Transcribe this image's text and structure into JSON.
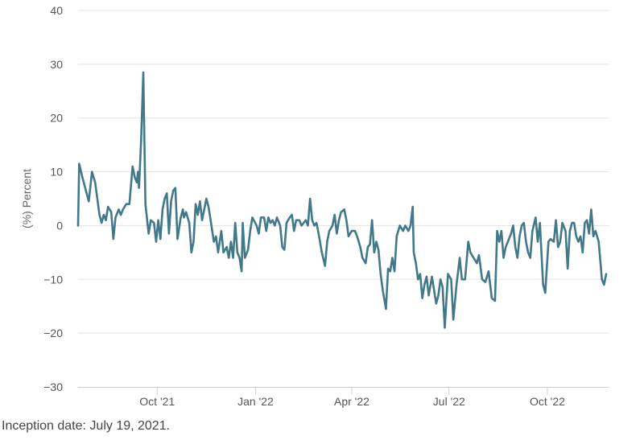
{
  "chart_data": {
    "type": "line",
    "title": "",
    "xlabel": "",
    "ylabel": "(%) Percent",
    "ylim": [
      -30,
      40
    ],
    "yticks": [
      -30,
      -20,
      -10,
      0,
      10,
      20,
      30,
      40
    ],
    "xlim": [
      "2021-07-19",
      "2022-11-28"
    ],
    "xticks": [
      {
        "date": "2021-10-01",
        "label": "Oct '21"
      },
      {
        "date": "2022-01-01",
        "label": "Jan '22"
      },
      {
        "date": "2022-04-01",
        "label": "Apr '22"
      },
      {
        "date": "2022-07-01",
        "label": "Jul '22"
      },
      {
        "date": "2022-10-01",
        "label": "Oct '22"
      }
    ],
    "grid": true,
    "legend": "none",
    "line_color": "#41788a",
    "series": [
      {
        "points": [
          [
            "2021-07-19",
            0
          ],
          [
            "2021-07-20",
            11.5
          ],
          [
            "2021-07-23",
            9
          ],
          [
            "2021-07-27",
            6
          ],
          [
            "2021-07-29",
            4.5
          ],
          [
            "2021-08-01",
            10
          ],
          [
            "2021-08-04",
            8
          ],
          [
            "2021-08-06",
            5
          ],
          [
            "2021-08-08",
            2
          ],
          [
            "2021-08-10",
            0.5
          ],
          [
            "2021-08-12",
            2
          ],
          [
            "2021-08-14",
            1
          ],
          [
            "2021-08-16",
            3.5
          ],
          [
            "2021-08-19",
            2.5
          ],
          [
            "2021-08-21",
            -2.5
          ],
          [
            "2021-08-23",
            1.5
          ],
          [
            "2021-08-26",
            3
          ],
          [
            "2021-08-28",
            2
          ],
          [
            "2021-08-30",
            3
          ],
          [
            "2021-09-02",
            4
          ],
          [
            "2021-09-05",
            4
          ],
          [
            "2021-09-08",
            11
          ],
          [
            "2021-09-10",
            9
          ],
          [
            "2021-09-12",
            8
          ],
          [
            "2021-09-13",
            10
          ],
          [
            "2021-09-14",
            7
          ],
          [
            "2021-09-16",
            16
          ],
          [
            "2021-09-18",
            28.5
          ],
          [
            "2021-09-20",
            4
          ],
          [
            "2021-09-23",
            -1.5
          ],
          [
            "2021-09-25",
            1
          ],
          [
            "2021-09-28",
            0.5
          ],
          [
            "2021-09-30",
            -3
          ],
          [
            "2021-10-02",
            1
          ],
          [
            "2021-10-04",
            -2.5
          ],
          [
            "2021-10-06",
            3
          ],
          [
            "2021-10-08",
            5
          ],
          [
            "2021-10-10",
            6
          ],
          [
            "2021-10-12",
            -1.5
          ],
          [
            "2021-10-14",
            4.5
          ],
          [
            "2021-10-16",
            6.5
          ],
          [
            "2021-10-18",
            7
          ],
          [
            "2021-10-20",
            -2.5
          ],
          [
            "2021-10-23",
            1.5
          ],
          [
            "2021-10-25",
            3
          ],
          [
            "2021-10-26",
            1.5
          ],
          [
            "2021-10-28",
            2.5
          ],
          [
            "2021-10-31",
            0.5
          ],
          [
            "2021-11-02",
            -5
          ],
          [
            "2021-11-04",
            -3
          ],
          [
            "2021-11-06",
            4
          ],
          [
            "2021-11-08",
            2
          ],
          [
            "2021-11-10",
            4.5
          ],
          [
            "2021-11-12",
            1
          ],
          [
            "2021-11-14",
            3
          ],
          [
            "2021-11-16",
            5
          ],
          [
            "2021-11-18",
            3.5
          ],
          [
            "2021-11-20",
            1
          ],
          [
            "2021-11-23",
            -3
          ],
          [
            "2021-11-25",
            -2
          ],
          [
            "2021-11-27",
            -5
          ],
          [
            "2021-11-30",
            -1
          ],
          [
            "2021-12-02",
            -5
          ],
          [
            "2021-12-05",
            -4
          ],
          [
            "2021-12-07",
            -6
          ],
          [
            "2021-12-09",
            -3
          ],
          [
            "2021-12-11",
            -6
          ],
          [
            "2021-12-13",
            0.5
          ],
          [
            "2021-12-15",
            -5
          ],
          [
            "2021-12-17",
            -6
          ],
          [
            "2021-12-19",
            -8.5
          ],
          [
            "2021-12-20",
            0.5
          ],
          [
            "2021-12-22",
            -6
          ],
          [
            "2021-12-25",
            -4.5
          ],
          [
            "2021-12-27",
            -1
          ],
          [
            "2021-12-29",
            1.5
          ],
          [
            "2022-01-02",
            0
          ],
          [
            "2022-01-04",
            -1.5
          ],
          [
            "2022-01-06",
            1.5
          ],
          [
            "2022-01-09",
            1.5
          ],
          [
            "2022-01-11",
            -1
          ],
          [
            "2022-01-13",
            1.5
          ],
          [
            "2022-01-15",
            0.5
          ],
          [
            "2022-01-17",
            1
          ],
          [
            "2022-01-19",
            0
          ],
          [
            "2022-01-21",
            1.5
          ],
          [
            "2022-01-24",
            0
          ],
          [
            "2022-01-26",
            -4
          ],
          [
            "2022-01-28",
            -4.5
          ],
          [
            "2022-01-30",
            0.5
          ],
          [
            "2022-02-02",
            1.5
          ],
          [
            "2022-02-04",
            2
          ],
          [
            "2022-02-06",
            -1
          ],
          [
            "2022-02-08",
            1
          ],
          [
            "2022-02-11",
            1
          ],
          [
            "2022-02-13",
            0
          ],
          [
            "2022-02-15",
            0.5
          ],
          [
            "2022-02-17",
            1
          ],
          [
            "2022-02-19",
            0
          ],
          [
            "2022-02-21",
            5
          ],
          [
            "2022-02-23",
            1
          ],
          [
            "2022-02-25",
            0
          ],
          [
            "2022-02-27",
            0.5
          ],
          [
            "2022-03-01",
            -1.5
          ],
          [
            "2022-03-04",
            -5
          ],
          [
            "2022-03-07",
            -7.5
          ],
          [
            "2022-03-09",
            -3
          ],
          [
            "2022-03-11",
            -1
          ],
          [
            "2022-03-14",
            0
          ],
          [
            "2022-03-16",
            2
          ],
          [
            "2022-03-18",
            -1.5
          ],
          [
            "2022-03-20",
            1
          ],
          [
            "2022-03-22",
            2.5
          ],
          [
            "2022-03-25",
            3
          ],
          [
            "2022-03-27",
            1
          ],
          [
            "2022-03-29",
            -2
          ],
          [
            "2022-04-01",
            -1
          ],
          [
            "2022-04-04",
            -1
          ],
          [
            "2022-04-06",
            -2
          ],
          [
            "2022-04-09",
            -4
          ],
          [
            "2022-04-11",
            -6
          ],
          [
            "2022-04-14",
            -7
          ],
          [
            "2022-04-16",
            -4
          ],
          [
            "2022-04-18",
            -3.5
          ],
          [
            "2022-04-20",
            1
          ],
          [
            "2022-04-22",
            -5
          ],
          [
            "2022-04-24",
            -3
          ],
          [
            "2022-04-26",
            -4.5
          ],
          [
            "2022-04-28",
            -9
          ],
          [
            "2022-04-30",
            -12
          ],
          [
            "2022-05-03",
            -15.5
          ],
          [
            "2022-05-05",
            -8
          ],
          [
            "2022-05-07",
            -8.5
          ],
          [
            "2022-05-09",
            -6
          ],
          [
            "2022-05-11",
            -8.5
          ],
          [
            "2022-05-13",
            -2
          ],
          [
            "2022-05-16",
            0
          ],
          [
            "2022-05-19",
            -1
          ],
          [
            "2022-05-21",
            0
          ],
          [
            "2022-05-24",
            -1
          ],
          [
            "2022-05-26",
            0
          ],
          [
            "2022-05-28",
            3.5
          ],
          [
            "2022-05-29",
            -5
          ],
          [
            "2022-05-31",
            -7
          ],
          [
            "2022-06-02",
            -10
          ],
          [
            "2022-06-04",
            -9
          ],
          [
            "2022-06-06",
            -13.5
          ],
          [
            "2022-06-08",
            -11
          ],
          [
            "2022-06-10",
            -9.5
          ],
          [
            "2022-06-12",
            -13
          ],
          [
            "2022-06-15",
            -9.5
          ],
          [
            "2022-06-17",
            -12
          ],
          [
            "2022-06-19",
            -14.5
          ],
          [
            "2022-06-21",
            -13
          ],
          [
            "2022-06-23",
            -10
          ],
          [
            "2022-06-25",
            -11.5
          ],
          [
            "2022-06-27",
            -19
          ],
          [
            "2022-06-30",
            -9
          ],
          [
            "2022-07-03",
            -10
          ],
          [
            "2022-07-05",
            -17.5
          ],
          [
            "2022-07-08",
            -11
          ],
          [
            "2022-07-11",
            -6
          ],
          [
            "2022-07-13",
            -10
          ],
          [
            "2022-07-16",
            -10
          ],
          [
            "2022-07-19",
            -3
          ],
          [
            "2022-07-21",
            -5
          ],
          [
            "2022-07-24",
            -6
          ],
          [
            "2022-07-27",
            -7
          ],
          [
            "2022-07-29",
            -5.5
          ],
          [
            "2022-08-01",
            -10
          ],
          [
            "2022-08-04",
            -10.5
          ],
          [
            "2022-08-07",
            -8.5
          ],
          [
            "2022-08-10",
            -13.5
          ],
          [
            "2022-08-13",
            -14
          ],
          [
            "2022-08-15",
            -1
          ],
          [
            "2022-08-17",
            -3
          ],
          [
            "2022-08-19",
            -1
          ],
          [
            "2022-08-21",
            -6
          ],
          [
            "2022-08-23",
            -4
          ],
          [
            "2022-08-26",
            -2.5
          ],
          [
            "2022-08-28",
            -1.5
          ],
          [
            "2022-08-30",
            0
          ],
          [
            "2022-09-01",
            -4
          ],
          [
            "2022-09-03",
            -6
          ],
          [
            "2022-09-05",
            -2
          ],
          [
            "2022-09-07",
            0
          ],
          [
            "2022-09-09",
            0.5
          ],
          [
            "2022-09-11",
            -3
          ],
          [
            "2022-09-13",
            -5
          ],
          [
            "2022-09-15",
            -6
          ],
          [
            "2022-09-17",
            -1
          ],
          [
            "2022-09-20",
            1.5
          ],
          [
            "2022-09-22",
            -3
          ],
          [
            "2022-09-24",
            0.5
          ],
          [
            "2022-09-27",
            -11
          ],
          [
            "2022-09-29",
            -12.5
          ],
          [
            "2022-10-02",
            -3
          ],
          [
            "2022-10-04",
            -2.5
          ],
          [
            "2022-10-07",
            -3
          ],
          [
            "2022-10-09",
            1
          ],
          [
            "2022-10-11",
            -4
          ],
          [
            "2022-10-13",
            -3
          ],
          [
            "2022-10-15",
            0.5
          ],
          [
            "2022-10-18",
            -1
          ],
          [
            "2022-10-20",
            -8
          ],
          [
            "2022-10-22",
            -1
          ],
          [
            "2022-10-24",
            0.5
          ],
          [
            "2022-10-26",
            0.5
          ],
          [
            "2022-10-28",
            -2
          ],
          [
            "2022-10-30",
            -3
          ],
          [
            "2022-11-01",
            -2
          ],
          [
            "2022-11-03",
            -5
          ],
          [
            "2022-11-05",
            0.5
          ],
          [
            "2022-11-07",
            1
          ],
          [
            "2022-11-09",
            -1.5
          ],
          [
            "2022-11-11",
            3
          ],
          [
            "2022-11-13",
            -2
          ],
          [
            "2022-11-15",
            -1
          ],
          [
            "2022-11-18",
            -3
          ],
          [
            "2022-11-21",
            -10
          ],
          [
            "2022-11-23",
            -11
          ],
          [
            "2022-11-25",
            -9
          ]
        ]
      }
    ]
  },
  "footnote": "Inception date: July 19, 2021."
}
